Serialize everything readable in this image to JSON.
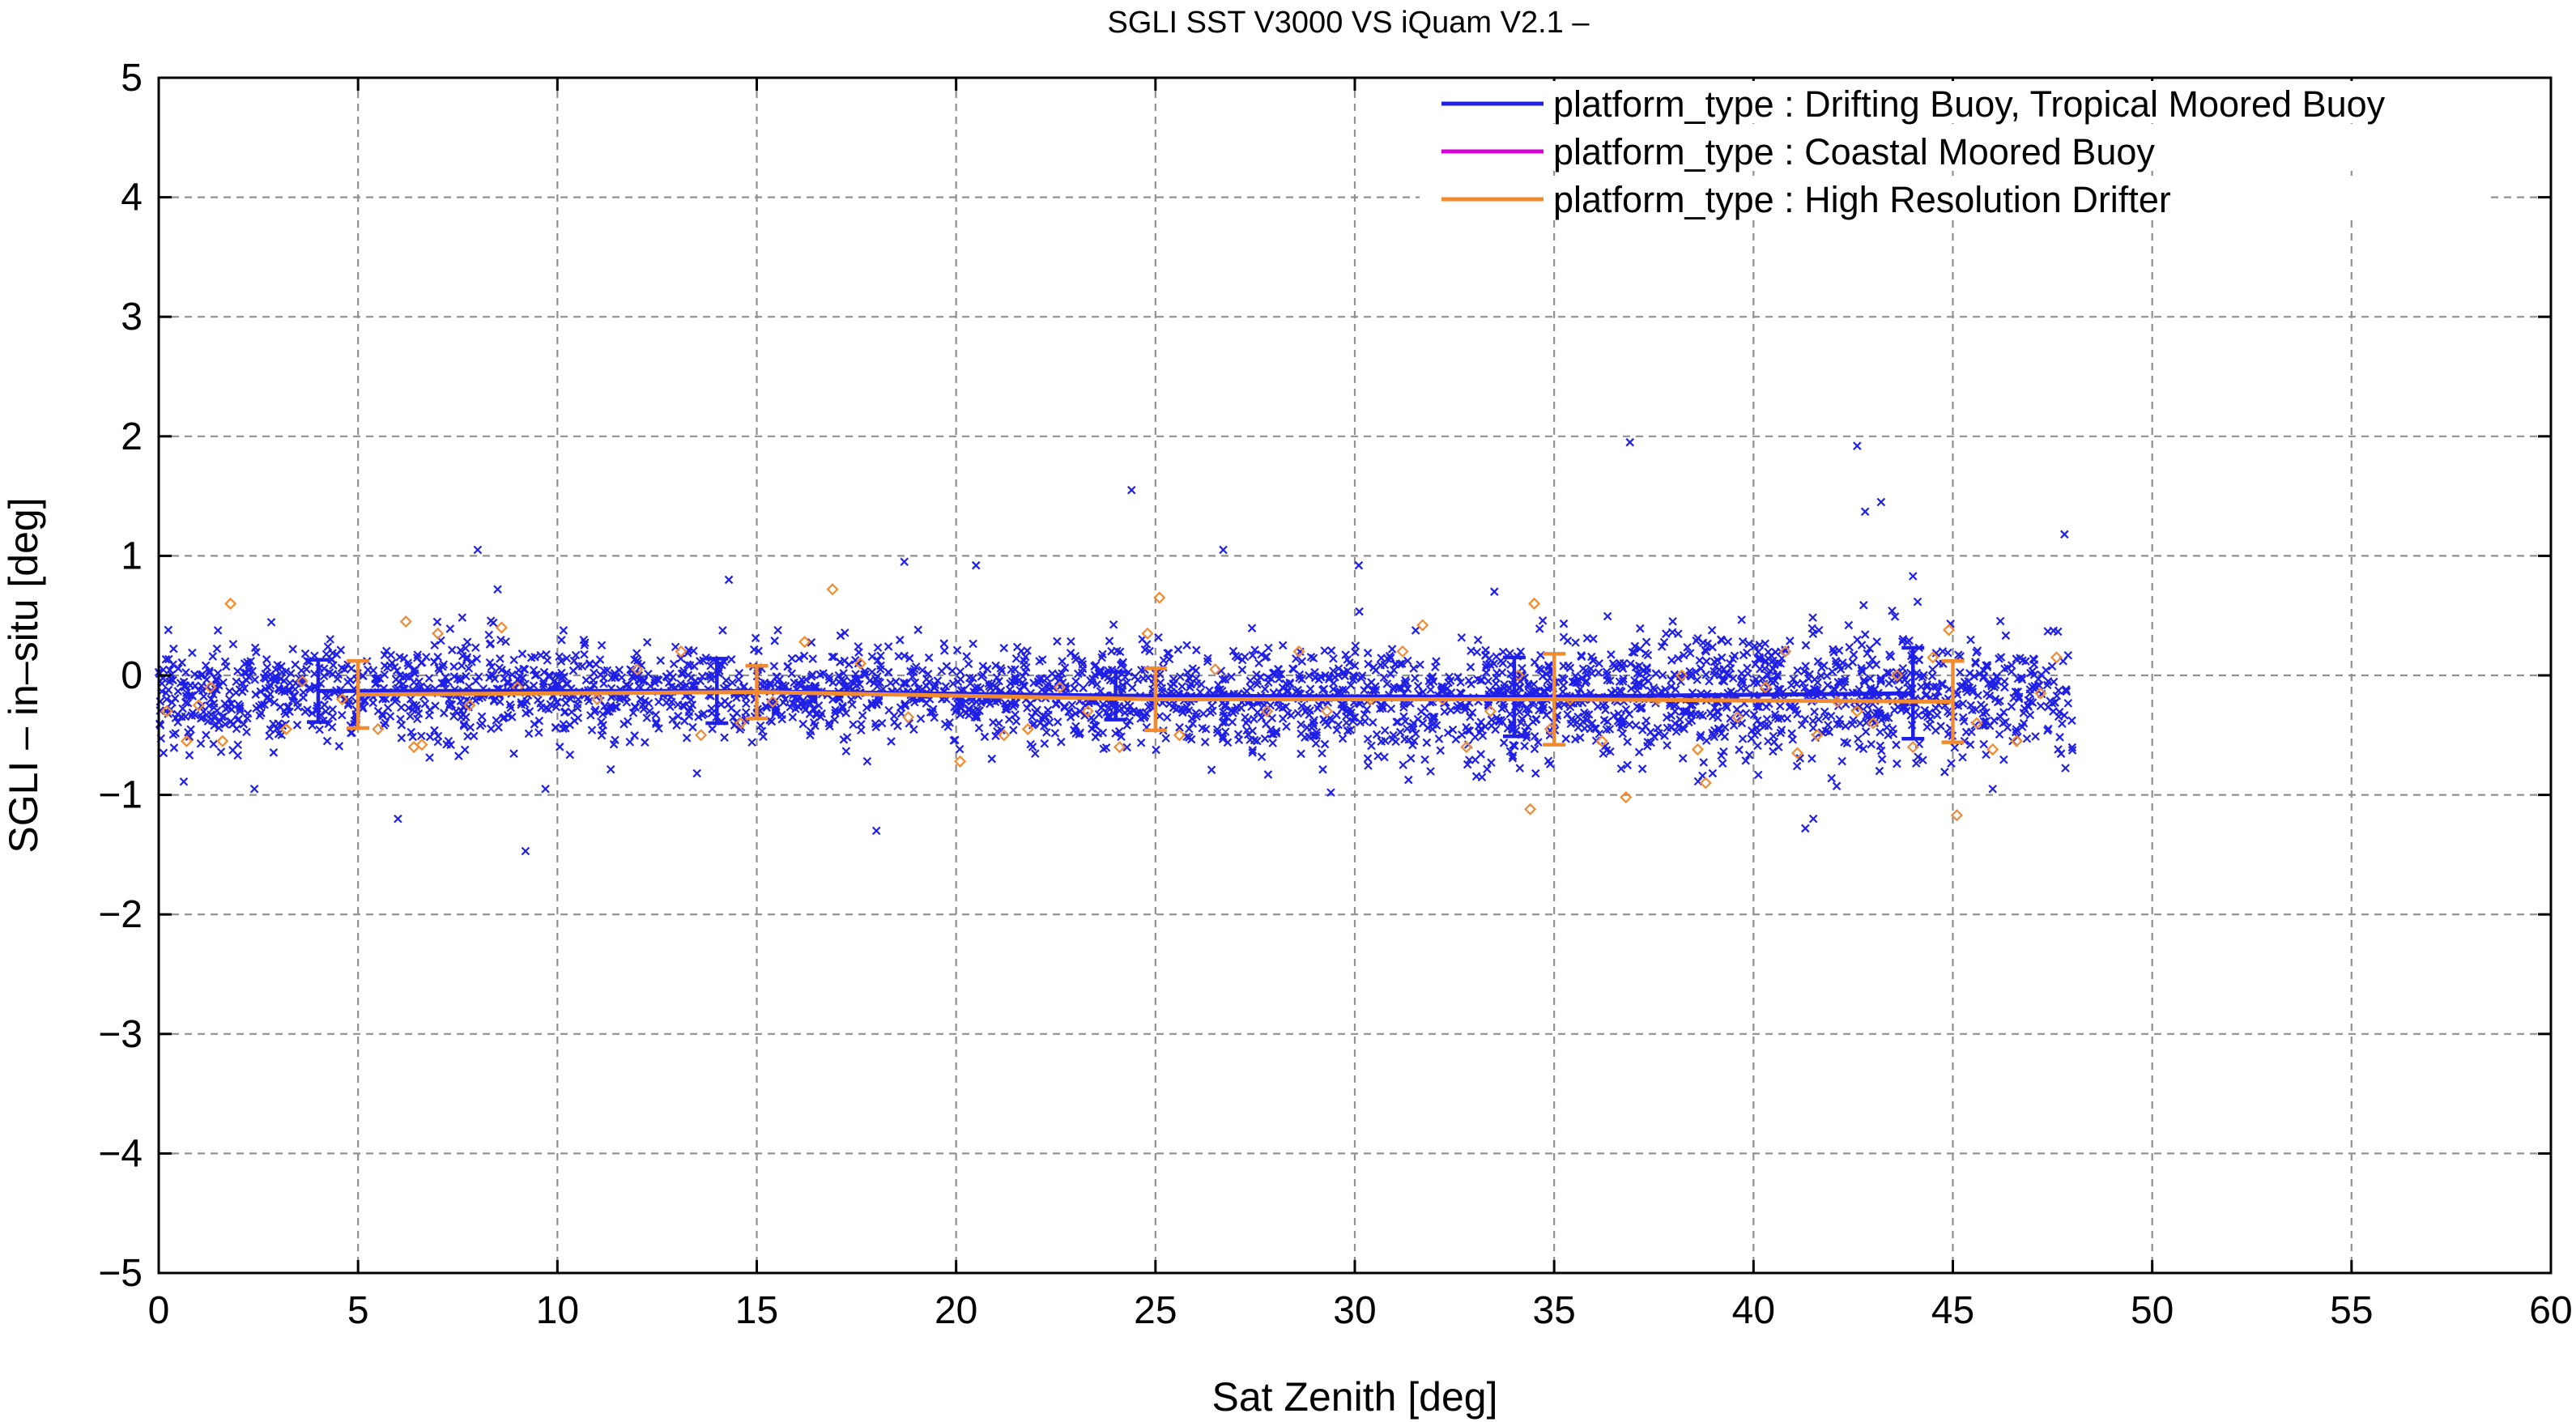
{
  "chart_data": {
    "type": "scatter",
    "title": "SGLI SST V3000 VS iQuam V2.1  –",
    "xlabel": "Sat Zenith [deg]",
    "ylabel": "SGLI – in–situ [deg]",
    "xlim": [
      0,
      60
    ],
    "ylim": [
      -5,
      5
    ],
    "xticks": [
      0,
      5,
      10,
      15,
      20,
      25,
      30,
      35,
      40,
      45,
      50,
      55,
      60
    ],
    "yticks": [
      -5,
      -4,
      -3,
      -2,
      -1,
      0,
      1,
      2,
      3,
      4,
      5
    ],
    "ytick_labels": [
      "−5",
      "−4",
      "−3",
      "−2",
      "−1",
      "0",
      "1",
      "2",
      "3",
      "4",
      "5"
    ],
    "grid": true,
    "legend_position": "top-right",
    "series": [
      {
        "name": "platform_type : Drifting Buoy, Tropical Moored Buoy",
        "color": "#1f1fe6",
        "marker": "x",
        "mean_x": [
          4,
          14,
          24,
          34,
          44
        ],
        "mean": [
          -0.13,
          -0.13,
          -0.17,
          -0.18,
          -0.15
        ],
        "std": [
          0.26,
          0.27,
          0.2,
          0.33,
          0.38
        ],
        "scatter_bins": [
          {
            "x": [
              0,
              2
            ],
            "mean": -0.18,
            "sd": 0.22,
            "n": 140
          },
          {
            "x": [
              2,
              5
            ],
            "mean": -0.15,
            "sd": 0.22,
            "n": 180
          },
          {
            "x": [
              5,
              10
            ],
            "mean": -0.12,
            "sd": 0.22,
            "n": 300
          },
          {
            "x": [
              10,
              15
            ],
            "mean": -0.13,
            "sd": 0.2,
            "n": 280
          },
          {
            "x": [
              15,
              20
            ],
            "mean": -0.13,
            "sd": 0.18,
            "n": 300
          },
          {
            "x": [
              20,
              25
            ],
            "mean": -0.16,
            "sd": 0.2,
            "n": 330
          },
          {
            "x": [
              25,
              30
            ],
            "mean": -0.18,
            "sd": 0.22,
            "n": 330
          },
          {
            "x": [
              30,
              35
            ],
            "mean": -0.2,
            "sd": 0.24,
            "n": 360
          },
          {
            "x": [
              35,
              40
            ],
            "mean": -0.18,
            "sd": 0.26,
            "n": 360
          },
          {
            "x": [
              40,
              45
            ],
            "mean": -0.15,
            "sd": 0.27,
            "n": 360
          },
          {
            "x": [
              45,
              48
            ],
            "mean": -0.15,
            "sd": 0.28,
            "n": 170
          }
        ],
        "outliers": [
          [
            8.0,
            1.05
          ],
          [
            8.5,
            0.72
          ],
          [
            9.2,
            -1.47
          ],
          [
            6.0,
            -1.2
          ],
          [
            9.7,
            -0.95
          ],
          [
            14.3,
            0.8
          ],
          [
            18.0,
            -1.3
          ],
          [
            18.7,
            0.95
          ],
          [
            20.5,
            0.92
          ],
          [
            24.4,
            1.55
          ],
          [
            26.7,
            1.05
          ],
          [
            30.1,
            0.92
          ],
          [
            36.9,
            1.95
          ],
          [
            42.6,
            1.92
          ],
          [
            42.8,
            1.37
          ],
          [
            43.2,
            1.45
          ],
          [
            47.8,
            1.18
          ],
          [
            41.5,
            -1.2
          ],
          [
            41.3,
            -1.28
          ],
          [
            46.0,
            -0.95
          ],
          [
            13.5,
            -0.82
          ],
          [
            44.0,
            0.83
          ],
          [
            29.4,
            -0.98
          ],
          [
            2.4,
            -0.95
          ],
          [
            33.5,
            0.7
          ]
        ]
      },
      {
        "name": "platform_type : Coastal Moored Buoy",
        "color": "#d900d9",
        "marker": "+",
        "points": []
      },
      {
        "name": "platform_type : High Resolution Drifter",
        "color": "#f28a30",
        "marker": "diamond",
        "mean_x": [
          5,
          15,
          25,
          35,
          45
        ],
        "mean": [
          -0.16,
          -0.14,
          -0.2,
          -0.2,
          -0.22
        ],
        "std": [
          0.28,
          0.22,
          0.26,
          0.38,
          0.34
        ],
        "points": [
          [
            0.2,
            -0.3
          ],
          [
            0.7,
            -0.55
          ],
          [
            1.0,
            -0.25
          ],
          [
            1.3,
            -0.1
          ],
          [
            1.6,
            -0.55
          ],
          [
            1.8,
            0.6
          ],
          [
            3.2,
            -0.45
          ],
          [
            3.6,
            -0.05
          ],
          [
            4.6,
            -0.2
          ],
          [
            5.5,
            -0.45
          ],
          [
            6.2,
            0.45
          ],
          [
            6.4,
            -0.6
          ],
          [
            6.6,
            -0.58
          ],
          [
            7.0,
            0.35
          ],
          [
            7.8,
            -0.25
          ],
          [
            8.6,
            0.4
          ],
          [
            9.0,
            -0.1
          ],
          [
            11.0,
            -0.2
          ],
          [
            12.0,
            0.05
          ],
          [
            13.1,
            0.2
          ],
          [
            13.6,
            -0.5
          ],
          [
            14.6,
            -0.4
          ],
          [
            15.4,
            -0.22
          ],
          [
            16.2,
            0.28
          ],
          [
            16.9,
            0.72
          ],
          [
            17.6,
            0.1
          ],
          [
            18.8,
            -0.35
          ],
          [
            20.1,
            -0.72
          ],
          [
            21.2,
            -0.5
          ],
          [
            21.8,
            -0.45
          ],
          [
            22.6,
            -0.1
          ],
          [
            23.3,
            -0.3
          ],
          [
            24.1,
            -0.6
          ],
          [
            24.8,
            0.35
          ],
          [
            25.1,
            0.65
          ],
          [
            25.6,
            -0.5
          ],
          [
            26.5,
            0.05
          ],
          [
            27.8,
            -0.3
          ],
          [
            28.6,
            0.2
          ],
          [
            29.3,
            -0.3
          ],
          [
            30.4,
            -0.2
          ],
          [
            31.2,
            0.2
          ],
          [
            31.7,
            0.42
          ],
          [
            32.2,
            -0.2
          ],
          [
            32.8,
            -0.6
          ],
          [
            33.4,
            -0.3
          ],
          [
            34.1,
            0.0
          ],
          [
            34.4,
            -1.12
          ],
          [
            34.5,
            0.6
          ],
          [
            34.9,
            -0.45
          ],
          [
            35.4,
            -0.2
          ],
          [
            36.2,
            -0.55
          ],
          [
            36.8,
            -1.02
          ],
          [
            37.6,
            -0.2
          ],
          [
            38.2,
            0.0
          ],
          [
            38.6,
            -0.62
          ],
          [
            38.8,
            -0.9
          ],
          [
            39.6,
            -0.35
          ],
          [
            40.3,
            -0.1
          ],
          [
            40.8,
            0.2
          ],
          [
            41.1,
            -0.65
          ],
          [
            41.6,
            -0.5
          ],
          [
            42.1,
            -0.22
          ],
          [
            42.6,
            -0.3
          ],
          [
            43.0,
            -0.4
          ],
          [
            43.6,
            0.0
          ],
          [
            44.0,
            -0.6
          ],
          [
            44.5,
            0.15
          ],
          [
            44.9,
            0.38
          ],
          [
            45.1,
            -1.17
          ],
          [
            45.6,
            -0.4
          ],
          [
            46.0,
            -0.62
          ],
          [
            46.6,
            -0.55
          ],
          [
            47.2,
            -0.15
          ],
          [
            47.6,
            0.15
          ]
        ]
      }
    ]
  }
}
